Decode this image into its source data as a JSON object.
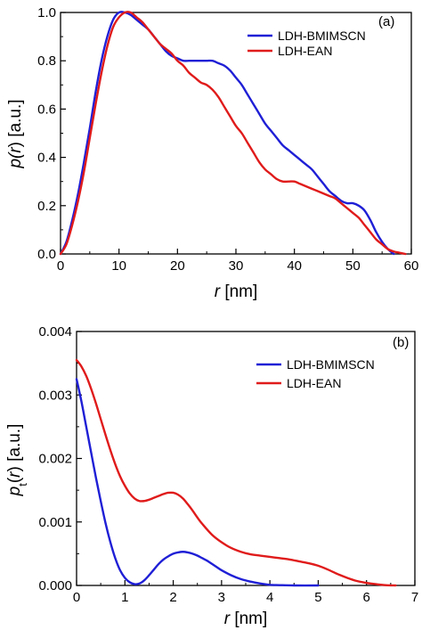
{
  "chart_data": [
    {
      "type": "line",
      "panel_label": "(a)",
      "xlabel_var": "r",
      "xlabel_unit": " [nm]",
      "ylabel_pre": "p(",
      "ylabel_var": "r",
      "ylabel_post": ") [a.u.]",
      "xlim": [
        0,
        60
      ],
      "ylim": [
        0,
        1.0
      ],
      "xticks": [
        0,
        10,
        20,
        30,
        40,
        50,
        60
      ],
      "yticks": [
        0.0,
        0.2,
        0.4,
        0.6,
        0.8,
        1.0
      ],
      "xtick_labels": [
        "0",
        "10",
        "20",
        "30",
        "40",
        "50",
        "60"
      ],
      "ytick_labels": [
        "0.0",
        "0.2",
        "0.4",
        "0.6",
        "0.8",
        "1.0"
      ],
      "legend_position": "top-right",
      "series": [
        {
          "name": "LDH-BMIMSCN",
          "color": "#1f1fd6",
          "x": [
            0,
            1,
            2,
            3,
            4,
            5,
            6,
            7,
            8,
            9,
            10,
            11,
            12,
            13,
            14,
            15,
            16,
            17,
            18,
            19,
            20,
            21,
            22,
            23,
            24,
            25,
            26,
            27,
            28,
            29,
            30,
            31,
            32,
            33,
            34,
            35,
            36,
            37,
            38,
            39,
            40,
            41,
            42,
            43,
            44,
            45,
            46,
            47,
            48,
            49,
            50,
            51,
            52,
            53,
            54,
            55,
            56,
            57
          ],
          "y": [
            0.0,
            0.05,
            0.14,
            0.25,
            0.38,
            0.52,
            0.67,
            0.8,
            0.9,
            0.97,
            1.0,
            1.0,
            0.99,
            0.97,
            0.95,
            0.93,
            0.9,
            0.87,
            0.84,
            0.82,
            0.81,
            0.8,
            0.8,
            0.8,
            0.8,
            0.8,
            0.8,
            0.79,
            0.78,
            0.76,
            0.73,
            0.7,
            0.66,
            0.62,
            0.58,
            0.54,
            0.51,
            0.48,
            0.45,
            0.43,
            0.41,
            0.39,
            0.37,
            0.35,
            0.32,
            0.29,
            0.26,
            0.24,
            0.22,
            0.21,
            0.21,
            0.2,
            0.18,
            0.14,
            0.09,
            0.05,
            0.02,
            0.0
          ]
        },
        {
          "name": "LDH-EAN",
          "color": "#e01b1b",
          "x": [
            0,
            1,
            2,
            3,
            4,
            5,
            6,
            7,
            8,
            9,
            10,
            11,
            12,
            13,
            14,
            15,
            16,
            17,
            18,
            19,
            20,
            21,
            22,
            23,
            24,
            25,
            26,
            27,
            28,
            29,
            30,
            31,
            32,
            33,
            34,
            35,
            36,
            37,
            38,
            39,
            40,
            41,
            42,
            43,
            44,
            45,
            46,
            47,
            48,
            49,
            50,
            51,
            52,
            53,
            54,
            55,
            56,
            57,
            58,
            59
          ],
          "y": [
            0.0,
            0.04,
            0.12,
            0.22,
            0.34,
            0.48,
            0.62,
            0.75,
            0.86,
            0.94,
            0.98,
            1.0,
            1.0,
            0.98,
            0.96,
            0.93,
            0.9,
            0.87,
            0.85,
            0.83,
            0.8,
            0.78,
            0.75,
            0.73,
            0.71,
            0.7,
            0.68,
            0.65,
            0.61,
            0.57,
            0.53,
            0.5,
            0.46,
            0.42,
            0.38,
            0.35,
            0.33,
            0.31,
            0.3,
            0.3,
            0.3,
            0.29,
            0.28,
            0.27,
            0.26,
            0.25,
            0.24,
            0.23,
            0.21,
            0.19,
            0.17,
            0.15,
            0.12,
            0.09,
            0.06,
            0.04,
            0.02,
            0.01,
            0.005,
            0.0
          ]
        }
      ]
    },
    {
      "type": "line",
      "panel_label": "(b)",
      "xlabel_var": "r",
      "xlabel_unit": " [nm]",
      "ylabel_pre": "p",
      "ylabel_sub": "t",
      "ylabel_open": "(",
      "ylabel_var": "r",
      "ylabel_post": ") [a.u.]",
      "xlim": [
        0,
        7
      ],
      "ylim": [
        0,
        0.004
      ],
      "xticks": [
        0,
        1,
        2,
        3,
        4,
        5,
        6,
        7
      ],
      "yticks": [
        0.0,
        0.001,
        0.002,
        0.003,
        0.004
      ],
      "xtick_labels": [
        "0",
        "1",
        "2",
        "3",
        "4",
        "5",
        "6",
        "7"
      ],
      "ytick_labels": [
        "0.000",
        "0.001",
        "0.002",
        "0.003",
        "0.004"
      ],
      "legend_position": "top-right",
      "series": [
        {
          "name": "LDH-BMIMSCN",
          "color": "#1f1fd6",
          "x": [
            0,
            0.1,
            0.2,
            0.3,
            0.4,
            0.5,
            0.6,
            0.7,
            0.8,
            0.9,
            1.0,
            1.1,
            1.2,
            1.3,
            1.4,
            1.5,
            1.6,
            1.7,
            1.8,
            1.9,
            2.0,
            2.1,
            2.2,
            2.3,
            2.4,
            2.5,
            2.6,
            2.7,
            2.8,
            2.9,
            3.0,
            3.2,
            3.4,
            3.6,
            3.8,
            4.0,
            4.2,
            4.5,
            5.0
          ],
          "y": [
            0.00325,
            0.0029,
            0.0025,
            0.0021,
            0.0017,
            0.00133,
            0.00098,
            0.00068,
            0.00043,
            0.00024,
            0.00012,
            5e-05,
            2e-05,
            3e-05,
            8e-05,
            0.00016,
            0.00025,
            0.00034,
            0.00041,
            0.00046,
            0.0005,
            0.00052,
            0.00053,
            0.00052,
            0.0005,
            0.00047,
            0.00043,
            0.00039,
            0.00034,
            0.00029,
            0.00024,
            0.00016,
            0.0001,
            6e-05,
            3e-05,
            1e-05,
            5e-06,
            0.0,
            0.0
          ]
        },
        {
          "name": "LDH-EAN",
          "color": "#e01b1b",
          "x": [
            0,
            0.1,
            0.2,
            0.3,
            0.4,
            0.5,
            0.6,
            0.7,
            0.8,
            0.9,
            1.0,
            1.1,
            1.2,
            1.3,
            1.4,
            1.5,
            1.6,
            1.7,
            1.8,
            1.9,
            2.0,
            2.1,
            2.2,
            2.3,
            2.4,
            2.5,
            2.6,
            2.8,
            3.0,
            3.2,
            3.4,
            3.6,
            3.8,
            4.0,
            4.2,
            4.4,
            4.6,
            4.8,
            5.0,
            5.2,
            5.4,
            5.6,
            5.8,
            6.0,
            6.2,
            6.4,
            6.6
          ],
          "y": [
            0.00355,
            0.00345,
            0.0033,
            0.0031,
            0.00287,
            0.00262,
            0.00237,
            0.00213,
            0.00191,
            0.00172,
            0.00157,
            0.00145,
            0.00137,
            0.00133,
            0.00133,
            0.00135,
            0.00138,
            0.00141,
            0.00144,
            0.00146,
            0.00146,
            0.00143,
            0.00137,
            0.00128,
            0.00118,
            0.00107,
            0.00097,
            0.0008,
            0.00068,
            0.00059,
            0.00053,
            0.00049,
            0.00047,
            0.00045,
            0.00043,
            0.00041,
            0.00038,
            0.00035,
            0.00031,
            0.00025,
            0.00018,
            0.00012,
            7e-05,
            4e-05,
            2e-05,
            5e-06,
            0.0
          ]
        }
      ]
    }
  ]
}
